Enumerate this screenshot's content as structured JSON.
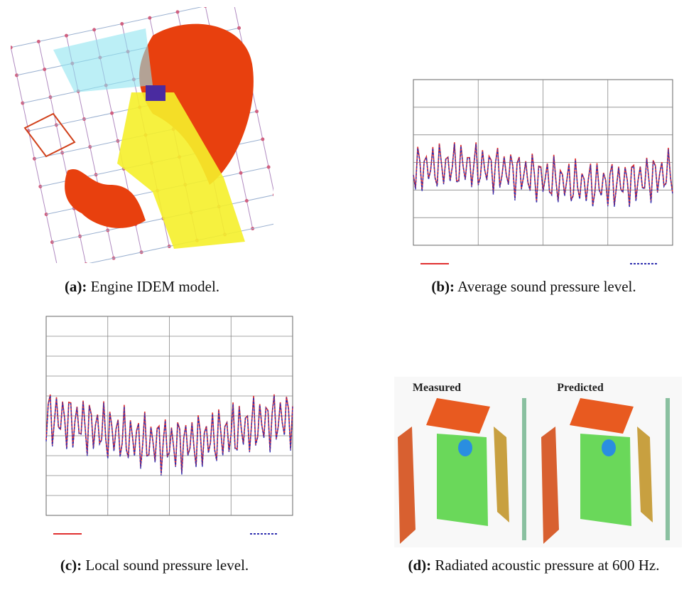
{
  "figures": [
    {
      "label": "(a):",
      "caption": "Engine IDEM model."
    },
    {
      "label": "(b):",
      "caption": "Average sound pressure level."
    },
    {
      "label": "(c):",
      "caption": "Local sound pressure level."
    },
    {
      "label": "(d):",
      "caption": "Radiated acoustic pressure at 600 Hz."
    }
  ],
  "panel_d": {
    "left_title": "Measured",
    "right_title": "Predicted"
  }
}
